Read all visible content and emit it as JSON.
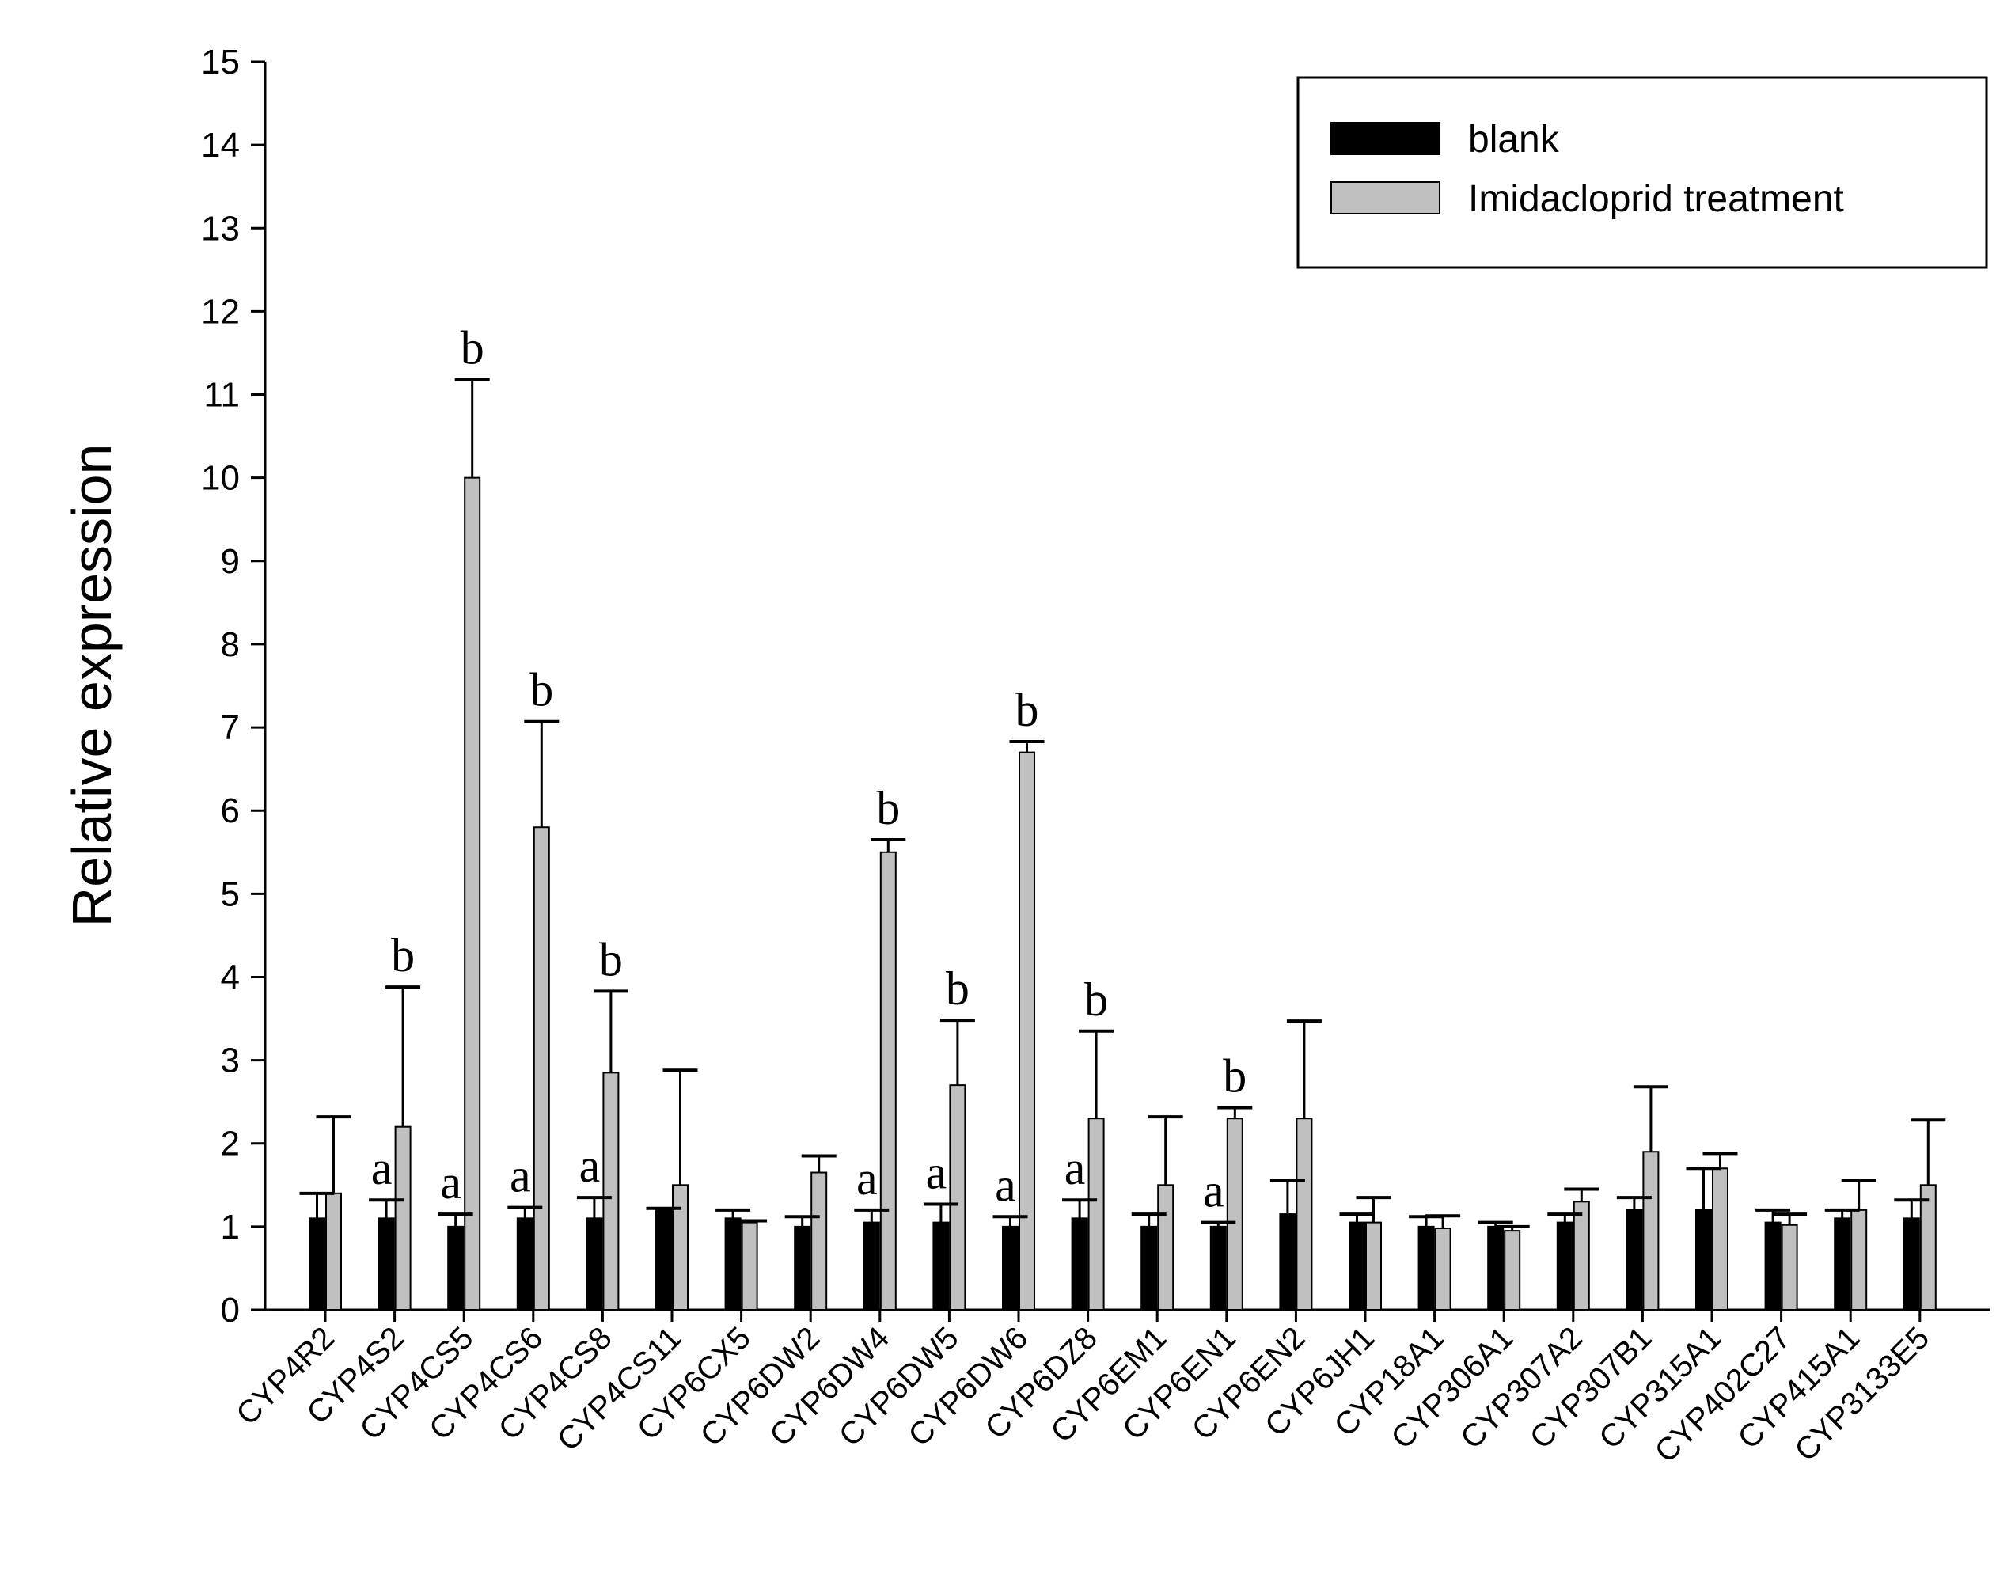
{
  "chart_data": {
    "type": "bar",
    "title": "",
    "xlabel": "",
    "ylabel": "Relative expression",
    "ylim": [
      0,
      15
    ],
    "yticks": [
      0,
      1,
      2,
      3,
      4,
      5,
      6,
      7,
      8,
      9,
      10,
      11,
      12,
      13,
      14,
      15
    ],
    "legend_position": "top-right",
    "categories": [
      "CYP4R2",
      "CYP4S2",
      "CYP4CS5",
      "CYP4CS6",
      "CYP4CS8",
      "CYP4CS11",
      "CYP6CX5",
      "CYP6DW2",
      "CYP6DW4",
      "CYP6DW5",
      "CYP6DW6",
      "CYP6DZ8",
      "CYP6EM1",
      "CYP6EN1",
      "CYP6EN2",
      "CYP6JH1",
      "CYP18A1",
      "CYP306A1",
      "CYP307A2",
      "CYP307B1",
      "CYP315A1",
      "CYP402C27",
      "CYP415A1",
      "CYP3133E5"
    ],
    "series": [
      {
        "name": "blank",
        "color": "#000000",
        "values": [
          1.1,
          1.1,
          1.0,
          1.1,
          1.1,
          1.2,
          1.1,
          1.0,
          1.05,
          1.05,
          1.0,
          1.1,
          1.0,
          1.0,
          1.15,
          1.05,
          1.0,
          1.0,
          1.05,
          1.2,
          1.2,
          1.05,
          1.1,
          1.1
        ],
        "errors": [
          0.3,
          0.22,
          0.15,
          0.13,
          0.25,
          0.02,
          0.1,
          0.12,
          0.15,
          0.22,
          0.12,
          0.22,
          0.15,
          0.05,
          0.4,
          0.1,
          0.12,
          0.05,
          0.1,
          0.15,
          0.5,
          0.15,
          0.1,
          0.22
        ],
        "significance": [
          "",
          "a",
          "a",
          "a",
          "a",
          "",
          "",
          "",
          "a",
          "a",
          "a",
          "a",
          "",
          "a",
          "",
          "",
          "",
          "",
          "",
          "",
          "",
          "",
          "",
          ""
        ]
      },
      {
        "name": "Imidacloprid treatment",
        "color": "#c0c0c0",
        "values": [
          1.4,
          2.2,
          10.0,
          5.8,
          2.85,
          1.5,
          1.05,
          1.65,
          5.5,
          2.7,
          6.7,
          2.3,
          1.5,
          2.3,
          2.3,
          1.05,
          0.98,
          0.95,
          1.3,
          1.9,
          1.7,
          1.02,
          1.2,
          1.5
        ],
        "errors": [
          0.92,
          1.68,
          1.18,
          1.27,
          0.98,
          1.38,
          0.02,
          0.2,
          0.15,
          0.78,
          0.13,
          1.05,
          0.82,
          0.13,
          1.17,
          0.3,
          0.15,
          0.05,
          0.15,
          0.78,
          0.18,
          0.13,
          0.35,
          0.78
        ],
        "significance": [
          "",
          "b",
          "b",
          "b",
          "b",
          "",
          "",
          "",
          "b",
          "b",
          "b",
          "b",
          "",
          "b",
          "",
          "",
          "",
          "",
          "",
          "",
          "",
          "",
          "",
          ""
        ]
      }
    ]
  }
}
